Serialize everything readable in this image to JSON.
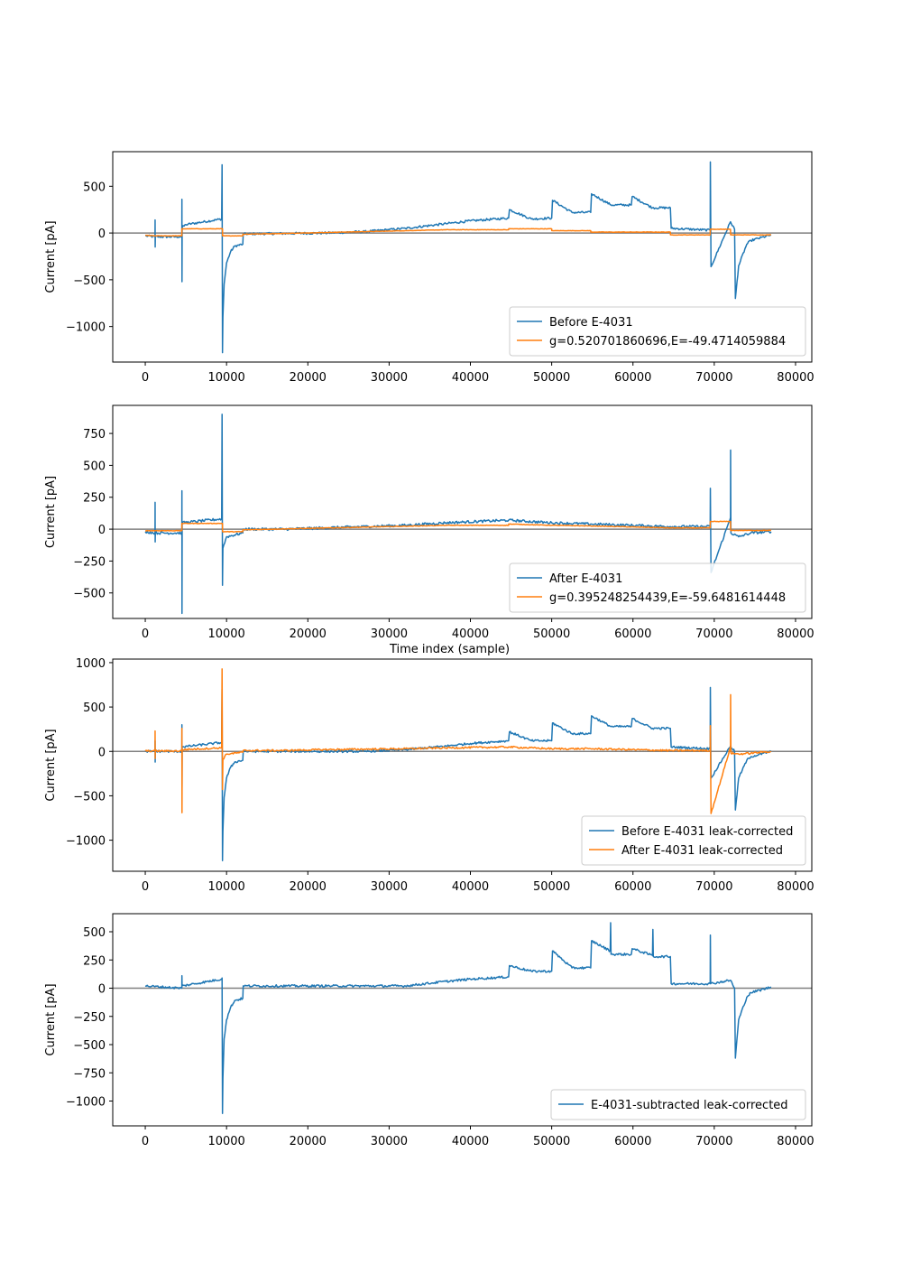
{
  "colors": {
    "blue": "#1f77b4",
    "orange": "#ff7f0e",
    "zero_line": "#808080"
  },
  "chart_data": [
    {
      "type": "line",
      "xlabel": "",
      "ylabel": "Current [pA]",
      "xlim": [
        -4000,
        82000
      ],
      "ylim": [
        -1380,
        870
      ],
      "xticks": [
        0,
        10000,
        20000,
        30000,
        40000,
        50000,
        60000,
        70000,
        80000
      ],
      "xtick_labels": [
        "0",
        "10000",
        "20000",
        "30000",
        "40000",
        "50000",
        "60000",
        "70000",
        "80000"
      ],
      "yticks": [
        500,
        0,
        -500,
        -1000
      ],
      "ytick_labels": [
        "500",
        "0",
        "−500",
        "−1000"
      ],
      "hline": 0,
      "legend_position": "lower right",
      "series": [
        {
          "name": "Before E-4031",
          "color": "blue",
          "x": [
            0,
            1200,
            1210,
            1220,
            1240,
            4500,
            4510,
            4520,
            4540,
            5000,
            9400,
            9450,
            9500,
            9550,
            9700,
            10000,
            10500,
            11000,
            12000,
            12050,
            17000,
            22000,
            27000,
            32000,
            37000,
            40000,
            44700,
            44800,
            47500,
            50000,
            50100,
            52500,
            54800,
            54900,
            57300,
            59800,
            59900,
            62400,
            64600,
            64700,
            69500,
            69520,
            69600,
            72000,
            72500,
            72600,
            73000,
            74000,
            74500,
            77000
          ],
          "y": [
            -30,
            -40,
            140,
            -150,
            -40,
            -40,
            360,
            -520,
            60,
            90,
            150,
            730,
            -1280,
            -900,
            -550,
            -320,
            -200,
            -140,
            -120,
            -10,
            -5,
            0,
            15,
            50,
            100,
            130,
            160,
            250,
            150,
            160,
            350,
            220,
            220,
            420,
            300,
            300,
            390,
            270,
            270,
            50,
            30,
            760,
            -360,
            120,
            40,
            -700,
            -350,
            -120,
            -80,
            -20
          ],
          "noise": 12
        },
        {
          "name": "g=0.520701860696,E=-49.4714059884",
          "color": "orange",
          "x": [
            0,
            1200,
            4500,
            4510,
            9500,
            9510,
            12000,
            12010,
            17000,
            27000,
            37000,
            44700,
            44710,
            50000,
            50010,
            54800,
            54810,
            64600,
            64610,
            69500,
            69510,
            72000,
            72010,
            77000
          ],
          "y": [
            -25,
            -30,
            -30,
            45,
            45,
            -30,
            -30,
            -12,
            -5,
            15,
            35,
            35,
            45,
            45,
            25,
            25,
            10,
            10,
            -20,
            -20,
            40,
            40,
            -20,
            -20
          ],
          "noise": 2
        }
      ]
    },
    {
      "type": "line",
      "xlabel": "Time index (sample)",
      "ylabel": "Current [pA]",
      "xlim": [
        -4000,
        82000
      ],
      "ylim": [
        -700,
        970
      ],
      "xticks": [
        0,
        10000,
        20000,
        30000,
        40000,
        50000,
        60000,
        70000,
        80000
      ],
      "xtick_labels": [
        "0",
        "10000",
        "20000",
        "30000",
        "40000",
        "50000",
        "60000",
        "70000",
        "80000"
      ],
      "yticks": [
        750,
        500,
        250,
        0,
        -250,
        -500
      ],
      "ytick_labels": [
        "750",
        "500",
        "250",
        "0",
        "−250",
        "−500"
      ],
      "hline": 0,
      "legend_position": "lower right",
      "series": [
        {
          "name": "After E-4031",
          "color": "blue",
          "x": [
            0,
            1200,
            1210,
            1220,
            1240,
            4500,
            4510,
            4520,
            4540,
            9400,
            9450,
            9500,
            9550,
            10000,
            12000,
            12050,
            17000,
            22000,
            27000,
            32000,
            37000,
            44700,
            50000,
            54800,
            64600,
            69500,
            69520,
            69600,
            72000,
            72010,
            72050,
            73000,
            74500,
            77000
          ],
          "y": [
            -20,
            -30,
            210,
            -100,
            -30,
            -30,
            300,
            -660,
            50,
            80,
            900,
            -440,
            -150,
            -60,
            -30,
            0,
            0,
            10,
            20,
            30,
            50,
            70,
            50,
            40,
            20,
            20,
            320,
            -340,
            90,
            620,
            -30,
            -60,
            -30,
            -20
          ],
          "noise": 10
        },
        {
          "name": "g=0.395248254439,E=-59.6481614448",
          "color": "orange",
          "x": [
            0,
            4500,
            4510,
            9500,
            9510,
            12000,
            12010,
            37000,
            44700,
            44710,
            50000,
            54800,
            64600,
            69500,
            69510,
            72000,
            72010,
            77000
          ],
          "y": [
            -12,
            -12,
            45,
            45,
            -20,
            -20,
            -5,
            30,
            30,
            40,
            30,
            25,
            10,
            10,
            60,
            60,
            -10,
            -10
          ],
          "noise": 2
        }
      ]
    },
    {
      "type": "line",
      "xlabel": "",
      "ylabel": "Current [pA]",
      "xlim": [
        -4000,
        82000
      ],
      "ylim": [
        -1350,
        1040
      ],
      "xticks": [
        0,
        10000,
        20000,
        30000,
        40000,
        50000,
        60000,
        70000,
        80000
      ],
      "xtick_labels": [
        "0",
        "10000",
        "20000",
        "30000",
        "40000",
        "50000",
        "60000",
        "70000",
        "80000"
      ],
      "yticks": [
        1000,
        500,
        0,
        -500,
        -1000
      ],
      "ytick_labels": [
        "1000",
        "500",
        "0",
        "−500",
        "−1000"
      ],
      "hline": 0,
      "legend_position": "lower right",
      "series": [
        {
          "name": "Before E-4031 leak-corrected",
          "color": "blue",
          "x": [
            0,
            1200,
            1210,
            1220,
            1240,
            4500,
            4510,
            4520,
            4540,
            9400,
            9450,
            9500,
            9550,
            9700,
            10000,
            10500,
            11000,
            12000,
            12050,
            17000,
            22000,
            27000,
            32000,
            37000,
            40000,
            44700,
            44800,
            47500,
            50000,
            50100,
            52500,
            54800,
            54900,
            57300,
            59800,
            59900,
            62400,
            64600,
            64700,
            69500,
            69520,
            69600,
            72000,
            72500,
            72600,
            73000,
            74000,
            74500,
            77000
          ],
          "y": [
            0,
            0,
            120,
            -120,
            0,
            0,
            300,
            -400,
            50,
            100,
            700,
            -1230,
            -900,
            -520,
            -300,
            -180,
            -120,
            -100,
            0,
            0,
            0,
            0,
            20,
            60,
            90,
            120,
            220,
            120,
            120,
            320,
            200,
            200,
            400,
            280,
            280,
            370,
            260,
            260,
            50,
            30,
            720,
            -300,
            60,
            0,
            -660,
            -300,
            -100,
            -60,
            0
          ],
          "noise": 12
        },
        {
          "name": "After E-4031 leak-corrected",
          "color": "orange",
          "x": [
            0,
            1200,
            1210,
            1220,
            1240,
            4500,
            4510,
            4520,
            4540,
            9400,
            9450,
            9500,
            9550,
            10000,
            12000,
            12050,
            17000,
            22000,
            27000,
            32000,
            37000,
            44700,
            50000,
            54800,
            64600,
            69500,
            69520,
            69600,
            72000,
            72010,
            72050,
            73000,
            74500,
            77000
          ],
          "y": [
            5,
            5,
            230,
            -80,
            5,
            5,
            260,
            -690,
            20,
            40,
            930,
            -430,
            -90,
            -30,
            -10,
            10,
            10,
            20,
            25,
            30,
            40,
            50,
            30,
            30,
            10,
            10,
            290,
            -700,
            50,
            640,
            -20,
            -30,
            -20,
            0
          ],
          "noise": 10
        }
      ]
    },
    {
      "type": "line",
      "xlabel": "",
      "ylabel": "Current [pA]",
      "xlim": [
        -4000,
        82000
      ],
      "ylim": [
        -1220,
        660
      ],
      "xticks": [
        0,
        10000,
        20000,
        30000,
        40000,
        50000,
        60000,
        70000,
        80000
      ],
      "xtick_labels": [
        "0",
        "10000",
        "20000",
        "30000",
        "40000",
        "50000",
        "60000",
        "70000",
        "80000"
      ],
      "yticks": [
        500,
        250,
        0,
        -250,
        -500,
        -750,
        -1000
      ],
      "ytick_labels": [
        "500",
        "250",
        "0",
        "−250",
        "−500",
        "−750",
        "−1000"
      ],
      "hline": 0,
      "legend_position": "lower right",
      "series": [
        {
          "name": "E-4031-subtracted leak-corrected",
          "color": "blue",
          "x": [
            0,
            4500,
            4510,
            4530,
            9400,
            9450,
            9500,
            9550,
            9700,
            10000,
            10500,
            11000,
            12000,
            12050,
            32000,
            37000,
            40000,
            44700,
            44800,
            47500,
            50000,
            50100,
            52500,
            54800,
            54900,
            57200,
            57250,
            57300,
            59800,
            59900,
            62400,
            62450,
            62500,
            64600,
            64700,
            69500,
            69520,
            69560,
            72000,
            72500,
            72600,
            73000,
            74000,
            74500,
            77000
          ],
          "y": [
            20,
            0,
            110,
            20,
            80,
            90,
            -1110,
            -800,
            -450,
            -280,
            -170,
            -110,
            -90,
            20,
            20,
            60,
            80,
            100,
            200,
            150,
            150,
            330,
            180,
            180,
            420,
            330,
            580,
            300,
            300,
            350,
            290,
            520,
            280,
            280,
            40,
            40,
            470,
            40,
            70,
            0,
            -620,
            -280,
            -80,
            -40,
            10
          ],
          "noise": 10
        }
      ]
    }
  ]
}
